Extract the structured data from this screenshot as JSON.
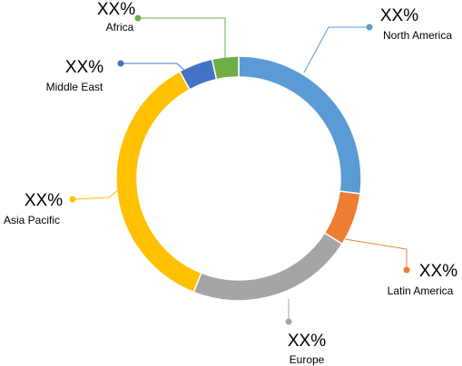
{
  "chart_data": {
    "type": "donut",
    "categories": [
      "North America",
      "Latin America",
      "Europe",
      "Asia Pacific",
      "Middle East",
      "Africa"
    ],
    "values": [
      27,
      7,
      22,
      36,
      4.5,
      3.5
    ],
    "annotations": [
      "XX%",
      "XX%",
      "XX%",
      "XX%",
      "XX%",
      "XX%"
    ],
    "colors": [
      "#5b9bd5",
      "#ed7d31",
      "#a5a5a5",
      "#ffc000",
      "#4472c4",
      "#70ad47"
    ]
  }
}
